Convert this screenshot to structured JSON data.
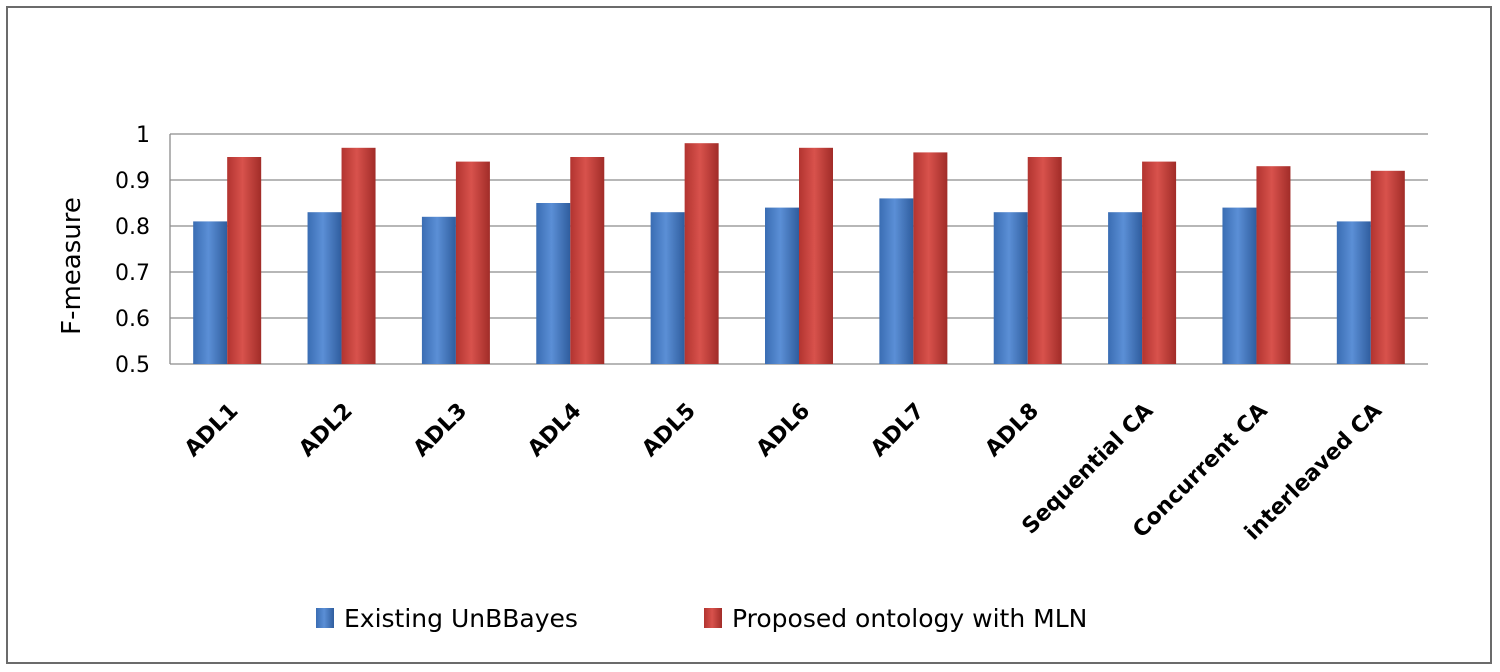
{
  "chart_data": {
    "type": "bar",
    "title": "",
    "xlabel": "",
    "ylabel": "F-measure",
    "ylim": [
      0.5,
      1
    ],
    "yticks": [
      "0.5",
      "0.6",
      "0.7",
      "0.8",
      "0.9",
      "1"
    ],
    "grid": true,
    "legend_position": "bottom",
    "categories": [
      "ADL1",
      "ADL2",
      "ADL3",
      "ADL4",
      "ADL5",
      "ADL6",
      "ADL7",
      "ADL8",
      "Sequential CA",
      "Concurrent CA",
      "interleaved CA"
    ],
    "series": [
      {
        "name": "Existing UnBBayes",
        "color": "#4a7fc4",
        "values": [
          0.81,
          0.83,
          0.82,
          0.85,
          0.83,
          0.84,
          0.86,
          0.83,
          0.83,
          0.84,
          0.81
        ]
      },
      {
        "name": "Proposed ontology with MLN",
        "color": "#c63a35",
        "values": [
          0.95,
          0.97,
          0.94,
          0.95,
          0.98,
          0.97,
          0.96,
          0.95,
          0.94,
          0.93,
          0.92
        ]
      }
    ]
  }
}
